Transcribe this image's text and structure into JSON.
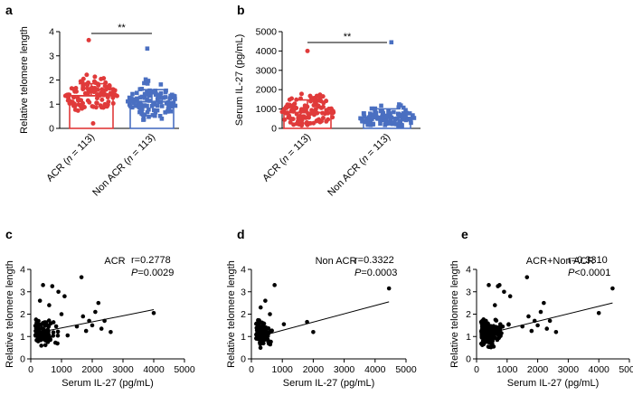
{
  "chart_data": [
    {
      "panel": "a",
      "type": "bar",
      "title": "",
      "ylabel": "Relative telomere length",
      "xlabel": "",
      "ylim": [
        0,
        4
      ],
      "yticks": [
        0,
        1,
        2,
        3,
        4
      ],
      "categories": [
        {
          "prefix": "ACR (",
          "n_sym": "n",
          "suffix": " = 113)",
          "full": "ACR (n = 113)"
        },
        {
          "prefix": "Non ACR (",
          "n_sym": "n",
          "suffix": " = 113)",
          "full": "Non ACR (n = 113)"
        }
      ],
      "values": [
        1.35,
        1.1
      ],
      "sd": [
        0.5,
        0.5
      ],
      "colors": [
        "#e03a3a",
        "#4a6fc1"
      ],
      "significance": "**",
      "points_range": [
        [
          0.2,
          3.65
        ],
        [
          0.25,
          3.3
        ]
      ]
    },
    {
      "panel": "b",
      "type": "bar",
      "title": "",
      "ylabel": "Serum IL-27 (pg/mL)",
      "xlabel": "",
      "ylim": [
        0,
        5000
      ],
      "yticks": [
        0,
        1000,
        2000,
        3000,
        4000,
        5000
      ],
      "categories": [
        {
          "prefix": "ACR (",
          "n_sym": "n",
          "suffix": " = 113)",
          "full": "ACR (n = 113)"
        },
        {
          "prefix": "Non ACR (",
          "n_sym": "n",
          "suffix": " = 113)",
          "full": "Non ACR (n = 113)"
        }
      ],
      "values": [
        820,
        560
      ],
      "sd": [
        650,
        450
      ],
      "colors": [
        "#e03a3a",
        "#4a6fc1"
      ],
      "significance": "**",
      "points_range": [
        [
          150,
          4000
        ],
        [
          120,
          4450
        ]
      ]
    },
    {
      "panel": "c",
      "type": "scatter",
      "title": "ACR",
      "xlabel": "Serum IL-27 (pg/mL)",
      "ylabel": "Relative telomere length",
      "xlim": [
        0,
        5000
      ],
      "ylim": [
        0,
        4
      ],
      "xticks": [
        0,
        1000,
        2000,
        3000,
        4000,
        5000
      ],
      "yticks": [
        0,
        1,
        2,
        3,
        4
      ],
      "r_text": "r=0.2778",
      "p_sym": "P",
      "p_rest": "=0.0029",
      "fit": {
        "x": [
          150,
          4000
        ],
        "y": [
          1.15,
          2.2
        ]
      },
      "points": [
        [
          4000,
          2.05
        ],
        [
          1650,
          3.65
        ],
        [
          2200,
          2.5
        ],
        [
          2100,
          2.1
        ],
        [
          2400,
          1.7
        ],
        [
          2600,
          1.2
        ],
        [
          1700,
          1.9
        ],
        [
          1900,
          1.7
        ],
        [
          1800,
          1.25
        ],
        [
          2000,
          1.5
        ],
        [
          2300,
          1.35
        ],
        [
          1500,
          1.45
        ],
        [
          700,
          3.25
        ],
        [
          900,
          3.0
        ],
        [
          400,
          3.3
        ],
        [
          1100,
          2.8
        ],
        [
          600,
          2.4
        ],
        [
          1000,
          2.0
        ],
        [
          300,
          2.6
        ],
        [
          1200,
          1.05
        ]
      ]
    },
    {
      "panel": "d",
      "type": "scatter",
      "title": "Non ACR",
      "xlabel": "Serum IL-27 (pg/mL)",
      "ylabel": "Relative telomere length",
      "xlim": [
        0,
        5000
      ],
      "ylim": [
        0,
        4
      ],
      "xticks": [
        0,
        1000,
        2000,
        3000,
        4000,
        5000
      ],
      "yticks": [
        0,
        1,
        2,
        3,
        4
      ],
      "r_text": "r=0.3322",
      "p_sym": "P",
      "p_rest": "=0.0003",
      "fit": {
        "x": [
          120,
          4450
        ],
        "y": [
          0.95,
          2.55
        ]
      },
      "points": [
        [
          4450,
          3.15
        ],
        [
          1800,
          1.65
        ],
        [
          2000,
          1.2
        ],
        [
          750,
          3.3
        ],
        [
          1050,
          1.55
        ],
        [
          450,
          2.6
        ],
        [
          300,
          2.3
        ],
        [
          600,
          2.0
        ]
      ]
    },
    {
      "panel": "e",
      "type": "scatter",
      "title": "ACR+Non ACR",
      "xlabel": "Serum IL-27 (pg/mL)",
      "ylabel": "Relative telomere length",
      "xlim": [
        0,
        5000
      ],
      "ylim": [
        0,
        4
      ],
      "xticks": [
        0,
        1000,
        2000,
        3000,
        4000,
        5000
      ],
      "yticks": [
        0,
        1,
        2,
        3,
        4
      ],
      "r_text": "r=0.3310",
      "p_sym": "P",
      "p_rest": "<0.0001",
      "fit": {
        "x": [
          120,
          4450
        ],
        "y": [
          1.05,
          2.5
        ]
      },
      "points": [
        [
          4450,
          3.15
        ],
        [
          4000,
          2.05
        ],
        [
          1650,
          3.65
        ],
        [
          2200,
          2.5
        ],
        [
          2100,
          2.1
        ],
        [
          2400,
          1.7
        ],
        [
          2600,
          1.2
        ],
        [
          1700,
          1.9
        ],
        [
          1900,
          1.7
        ],
        [
          1800,
          1.25
        ],
        [
          2000,
          1.5
        ],
        [
          2300,
          1.35
        ],
        [
          1500,
          1.45
        ],
        [
          700,
          3.25
        ],
        [
          900,
          3.0
        ],
        [
          400,
          3.3
        ],
        [
          1100,
          2.8
        ],
        [
          600,
          2.4
        ],
        [
          750,
          3.3
        ],
        [
          1050,
          1.55
        ]
      ]
    }
  ]
}
